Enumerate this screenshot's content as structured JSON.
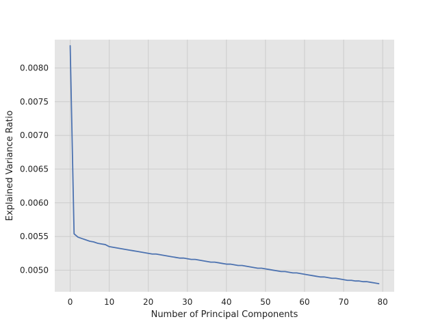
{
  "chart_data": {
    "type": "line",
    "title": "",
    "xlabel": "Number of Principal Components",
    "ylabel": "Explained Variance Ratio",
    "xlim": [
      -3.95,
      82.95
    ],
    "ylim": [
      0.00468,
      0.00842
    ],
    "xticks": [
      0,
      10,
      20,
      30,
      40,
      50,
      60,
      70,
      80
    ],
    "xtick_labels": [
      "0",
      "10",
      "20",
      "30",
      "40",
      "50",
      "60",
      "70",
      "80"
    ],
    "yticks": [
      0.005,
      0.0055,
      0.006,
      0.0065,
      0.007,
      0.0075,
      0.008
    ],
    "ytick_labels": [
      "0.0050",
      "0.0055",
      "0.0060",
      "0.0065",
      "0.0070",
      "0.0075",
      "0.0080"
    ],
    "grid": true,
    "colors": {
      "plot_background": "#e5e5e5",
      "grid": "#cccccc",
      "line": "#4c72b0"
    },
    "series": [
      {
        "x": [
          0,
          1,
          2,
          3,
          4,
          5,
          6,
          7,
          8,
          9,
          10,
          11,
          12,
          13,
          14,
          15,
          16,
          17,
          18,
          19,
          20,
          21,
          22,
          23,
          24,
          25,
          26,
          27,
          28,
          29,
          30,
          31,
          32,
          33,
          34,
          35,
          36,
          37,
          38,
          39,
          40,
          41,
          42,
          43,
          44,
          45,
          46,
          47,
          48,
          49,
          50,
          51,
          52,
          53,
          54,
          55,
          56,
          57,
          58,
          59,
          60,
          61,
          62,
          63,
          64,
          65,
          66,
          67,
          68,
          69,
          70,
          71,
          72,
          73,
          74,
          75,
          76,
          77,
          78,
          79
        ],
        "values": [
          0.00833,
          0.00554,
          0.00549,
          0.00547,
          0.00545,
          0.00543,
          0.00542,
          0.0054,
          0.00539,
          0.00538,
          0.00535,
          0.00534,
          0.00533,
          0.00532,
          0.00531,
          0.0053,
          0.00529,
          0.00528,
          0.00527,
          0.00526,
          0.00525,
          0.00524,
          0.00524,
          0.00523,
          0.00522,
          0.00521,
          0.0052,
          0.00519,
          0.00518,
          0.00518,
          0.00517,
          0.00516,
          0.00516,
          0.00515,
          0.00514,
          0.00513,
          0.00512,
          0.00512,
          0.00511,
          0.0051,
          0.00509,
          0.00509,
          0.00508,
          0.00507,
          0.00507,
          0.00506,
          0.00505,
          0.00504,
          0.00503,
          0.00503,
          0.00502,
          0.00501,
          0.005,
          0.00499,
          0.00498,
          0.00498,
          0.00497,
          0.00496,
          0.00496,
          0.00495,
          0.00494,
          0.00493,
          0.00492,
          0.00491,
          0.0049,
          0.0049,
          0.00489,
          0.00488,
          0.00488,
          0.00487,
          0.00486,
          0.00485,
          0.00485,
          0.00484,
          0.00484,
          0.00483,
          0.00483,
          0.00482,
          0.00481,
          0.0048
        ]
      }
    ]
  }
}
